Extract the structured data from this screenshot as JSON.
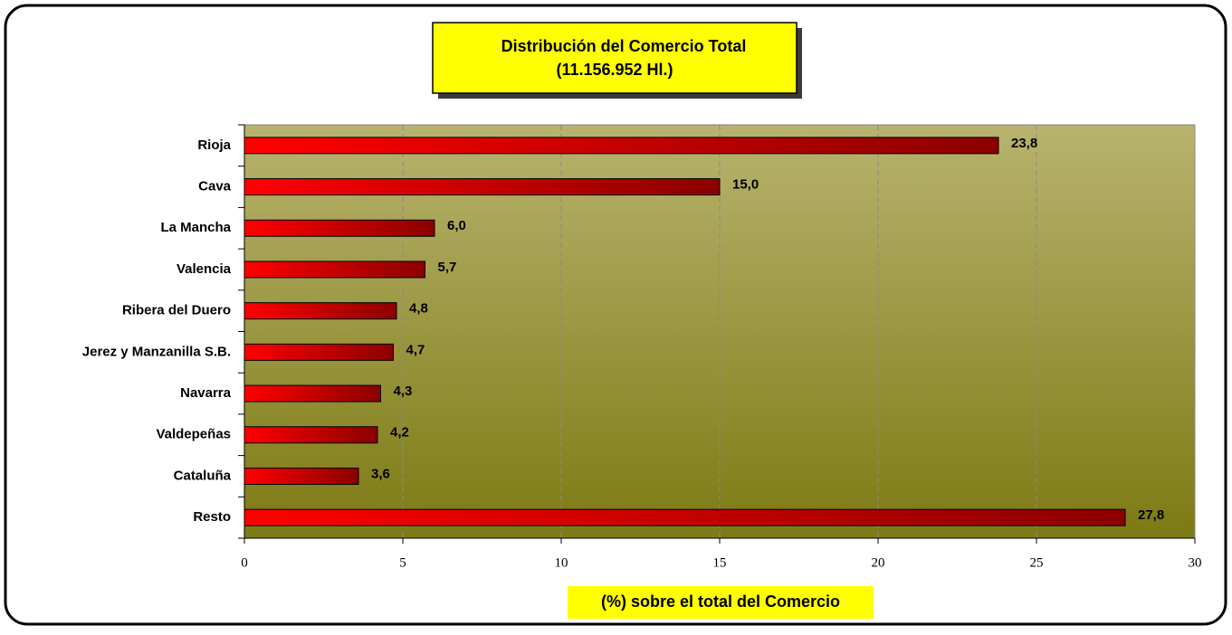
{
  "chart_data": {
    "type": "bar",
    "orientation": "horizontal",
    "title": "Distribución del Comercio Total",
    "subtitle": "(11.156.952 Hl.)",
    "x_label": "(%) sobre el total del Comercio",
    "categories": [
      "Rioja",
      "Cava",
      "La Mancha",
      "Valencia",
      "Ribera del Duero",
      "Jerez y Manzanilla S.B.",
      "Navarra",
      "Valdepeñas",
      "Cataluña",
      "Resto"
    ],
    "values": [
      23.8,
      15.0,
      6.0,
      5.7,
      4.8,
      4.7,
      4.3,
      4.2,
      3.6,
      27.8
    ],
    "value_labels": [
      "23,8",
      "15,0",
      "6,0",
      "5,7",
      "4,8",
      "4,7",
      "4,3",
      "4,2",
      "3,6",
      "27,8"
    ],
    "color": "#ff0000",
    "xlim": [
      0,
      30
    ],
    "xticks": [
      0,
      5,
      10,
      15,
      20,
      25,
      30
    ],
    "grid": true
  }
}
